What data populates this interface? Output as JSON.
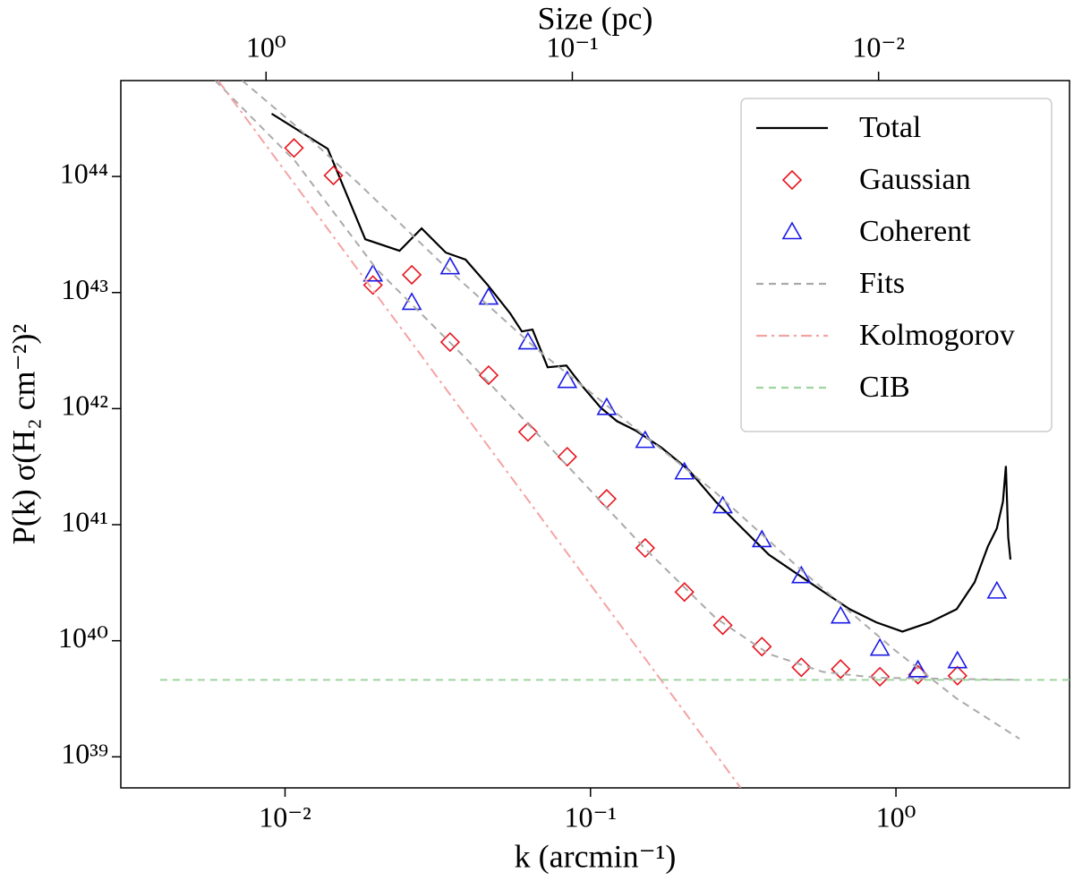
{
  "chart_data": {
    "type": "line",
    "xlabel": "k (arcmin⁻¹)",
    "ylabel": "P(k) σ(H₂ cm⁻²)²",
    "x2label": "Size (pc)",
    "xscale": "log",
    "yscale": "log",
    "x2scale": "log",
    "xlim": [
      0.0029,
      3.7
    ],
    "ylim": [
      5.4e+38,
      6.7e+44
    ],
    "x2lim": [
      2.98,
      0.00238
    ],
    "xticks": [
      {
        "value": 0.01,
        "label": "10⁻²"
      },
      {
        "value": 0.1,
        "label": "10⁻¹"
      },
      {
        "value": 1,
        "label": "10⁰"
      }
    ],
    "x2ticks": [
      {
        "value": 1,
        "label": "10⁰"
      },
      {
        "value": 0.1,
        "label": "10⁻¹"
      },
      {
        "value": 0.01,
        "label": "10⁻²"
      }
    ],
    "yticks": [
      {
        "value": 1e+39,
        "label": "10³⁹"
      },
      {
        "value": 1e+40,
        "label": "10⁴⁰"
      },
      {
        "value": 1e+41,
        "label": "10⁴¹"
      },
      {
        "value": 1e+42,
        "label": "10⁴²"
      },
      {
        "value": 1e+43,
        "label": "10⁴³"
      },
      {
        "value": 1e+44,
        "label": "10⁴⁴"
      }
    ],
    "grid": false,
    "legend": "upper right",
    "series": [
      {
        "name": "Total",
        "color": "#000000",
        "linestyle": "solid",
        "x": [
          0.00904,
          0.0138,
          0.0183,
          0.0237,
          0.028,
          0.0336,
          0.039,
          0.0461,
          0.0546,
          0.0596,
          0.0646,
          0.0724,
          0.0834,
          0.0935,
          0.108,
          0.122,
          0.14,
          0.171,
          0.21,
          0.257,
          0.314,
          0.384,
          0.471,
          0.576,
          0.705,
          0.863,
          1.05,
          1.29,
          1.58,
          1.81,
          2.0,
          2.14,
          2.24,
          2.29,
          2.33,
          2.37
        ],
        "values": [
          3.47e+44,
          1.73e+44,
          2.88e+43,
          2.29e+43,
          3.57e+43,
          2.21e+43,
          1.92e+43,
          1.16e+43,
          6.6e+42,
          4.62e+42,
          4.8e+42,
          2.27e+42,
          2.35e+42,
          1.59e+42,
          1.02e+42,
          7.8e+41,
          6.5e+41,
          4.6e+41,
          2.94e+41,
          1.58e+41,
          9.3e+40,
          5.5e+40,
          3.82e+40,
          2.67e+40,
          1.87e+40,
          1.44e+40,
          1.2e+40,
          1.44e+40,
          1.87e+40,
          3.2e+40,
          6.5e+40,
          9.3e+40,
          1.58e+41,
          3.2e+41,
          7.8e+40,
          5e+40
        ]
      },
      {
        "name": "Gaussian",
        "color": "#e8141e",
        "marker": "diamond",
        "x": [
          0.0107,
          0.0144,
          0.0194,
          0.026,
          0.0347,
          0.0464,
          0.0624,
          0.0839,
          0.113,
          0.151,
          0.203,
          0.271,
          0.364,
          0.49,
          0.659,
          0.886,
          1.18,
          1.59
        ],
        "values": [
          1.76e+44,
          1.02e+44,
          1.16e+43,
          1.42e+43,
          3.74e+42,
          1.94e+42,
          6.3e+41,
          3.85e+41,
          1.67e+41,
          6.3e+40,
          2.63e+40,
          1.36e+40,
          8.9e+39,
          5.9e+39,
          5.7e+39,
          4.9e+39,
          5.1e+39,
          5e+39
        ]
      },
      {
        "name": "Coherent",
        "color": "#1a1ae6",
        "marker": "triangle",
        "x": [
          0.0194,
          0.026,
          0.0347,
          0.0464,
          0.0624,
          0.0839,
          0.113,
          0.151,
          0.203,
          0.271,
          0.364,
          0.49,
          0.659,
          0.886,
          1.18,
          1.59,
          2.14
        ],
        "values": [
          1.44e+43,
          8.2e+42,
          1.66e+43,
          9.1e+42,
          3.74e+42,
          1.74e+42,
          1.02e+42,
          5.3e+41,
          2.84e+41,
          1.45e+41,
          7.4e+40,
          3.62e+40,
          1.63e+40,
          8.6e+39,
          5.6e+39,
          6.7e+39,
          2.67e+40
        ]
      },
      {
        "name": "Fits",
        "color": "#aaaaaa",
        "linestyle": "dashed",
        "x": [
          0.00724,
          0.0108,
          0.0174,
          0.034,
          0.0668,
          0.131,
          0.257,
          0.503,
          0.986,
          1.58,
          2.54,
          null,
          0.00591,
          0.0108,
          0.0199,
          0.039,
          0.0764,
          0.15,
          0.257,
          0.384,
          0.576,
          0.863,
          1.48,
          2.54
        ],
        "values": [
          6.7e+44,
          2.75e+44,
          8.7e+43,
          1.6e+43,
          3.24e+42,
          7.8e+41,
          1.89e+41,
          3.82e+40,
          8.4e+39,
          3.18e+39,
          1.43e+39,
          null,
          6.7e+44,
          1.35e+44,
          1.6e+43,
          2.72e+42,
          4.2e+41,
          6.3e+40,
          1.57e+40,
          7.7e+39,
          5.4e+39,
          4.8e+39,
          4.7e+39,
          4.6e+39
        ]
      },
      {
        "name": "Kolmogorov",
        "color": "#f4a3a3",
        "linestyle": "dashdot",
        "x": [
          0.00604,
          0.31
        ],
        "values": [
          6.7e+44,
          5.4e+38
        ]
      },
      {
        "name": "CIB",
        "color": "#9fd49f",
        "linestyle": "dashed",
        "x": [
          0.0039,
          3.7
        ],
        "values": [
          4.6e+39,
          4.6e+39
        ]
      }
    ]
  }
}
